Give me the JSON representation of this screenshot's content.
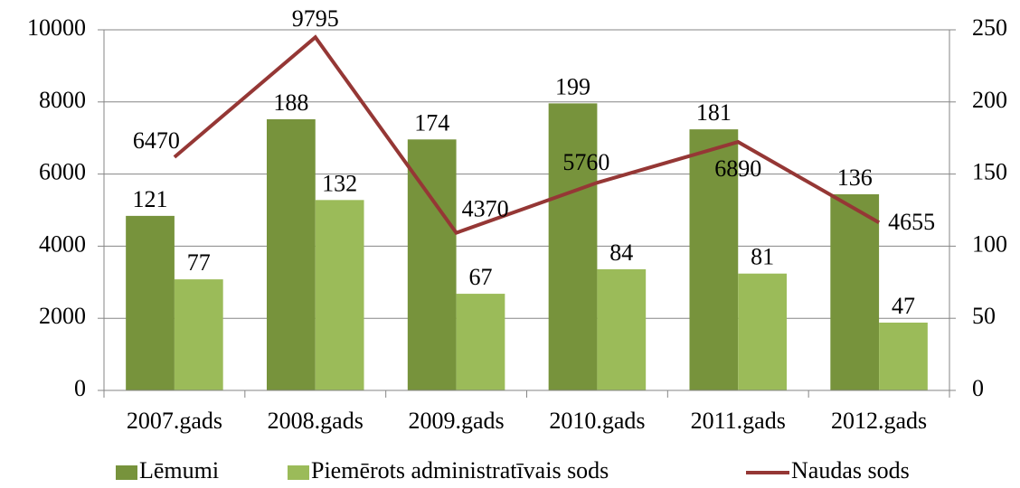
{
  "chart_data": {
    "type": "bar_line",
    "categories": [
      "2007.gads",
      "2008.gads",
      "2009.gads",
      "2010.gads",
      "2011.gads",
      "2012.gads"
    ],
    "series": [
      {
        "name": "Lēmumi",
        "type": "bar",
        "axis": "y2",
        "color": "#77933c",
        "values": [
          121,
          188,
          174,
          199,
          181,
          136
        ]
      },
      {
        "name": "Piemērots administratīvais sods",
        "type": "bar",
        "axis": "y2",
        "color": "#9bbb59",
        "values": [
          77,
          132,
          67,
          84,
          81,
          47
        ]
      },
      {
        "name": "Naudas sods",
        "type": "line",
        "axis": "y",
        "color": "#953735",
        "values": [
          6470,
          9795,
          4370,
          5760,
          6890,
          4655
        ]
      }
    ],
    "ylim": [
      0,
      10000
    ],
    "yticks": [
      0,
      2000,
      4000,
      6000,
      8000,
      10000
    ],
    "y2lim": [
      0,
      250
    ],
    "y2ticks": [
      0,
      50,
      100,
      150,
      200,
      250
    ],
    "grid": true,
    "legend": "bottom"
  }
}
